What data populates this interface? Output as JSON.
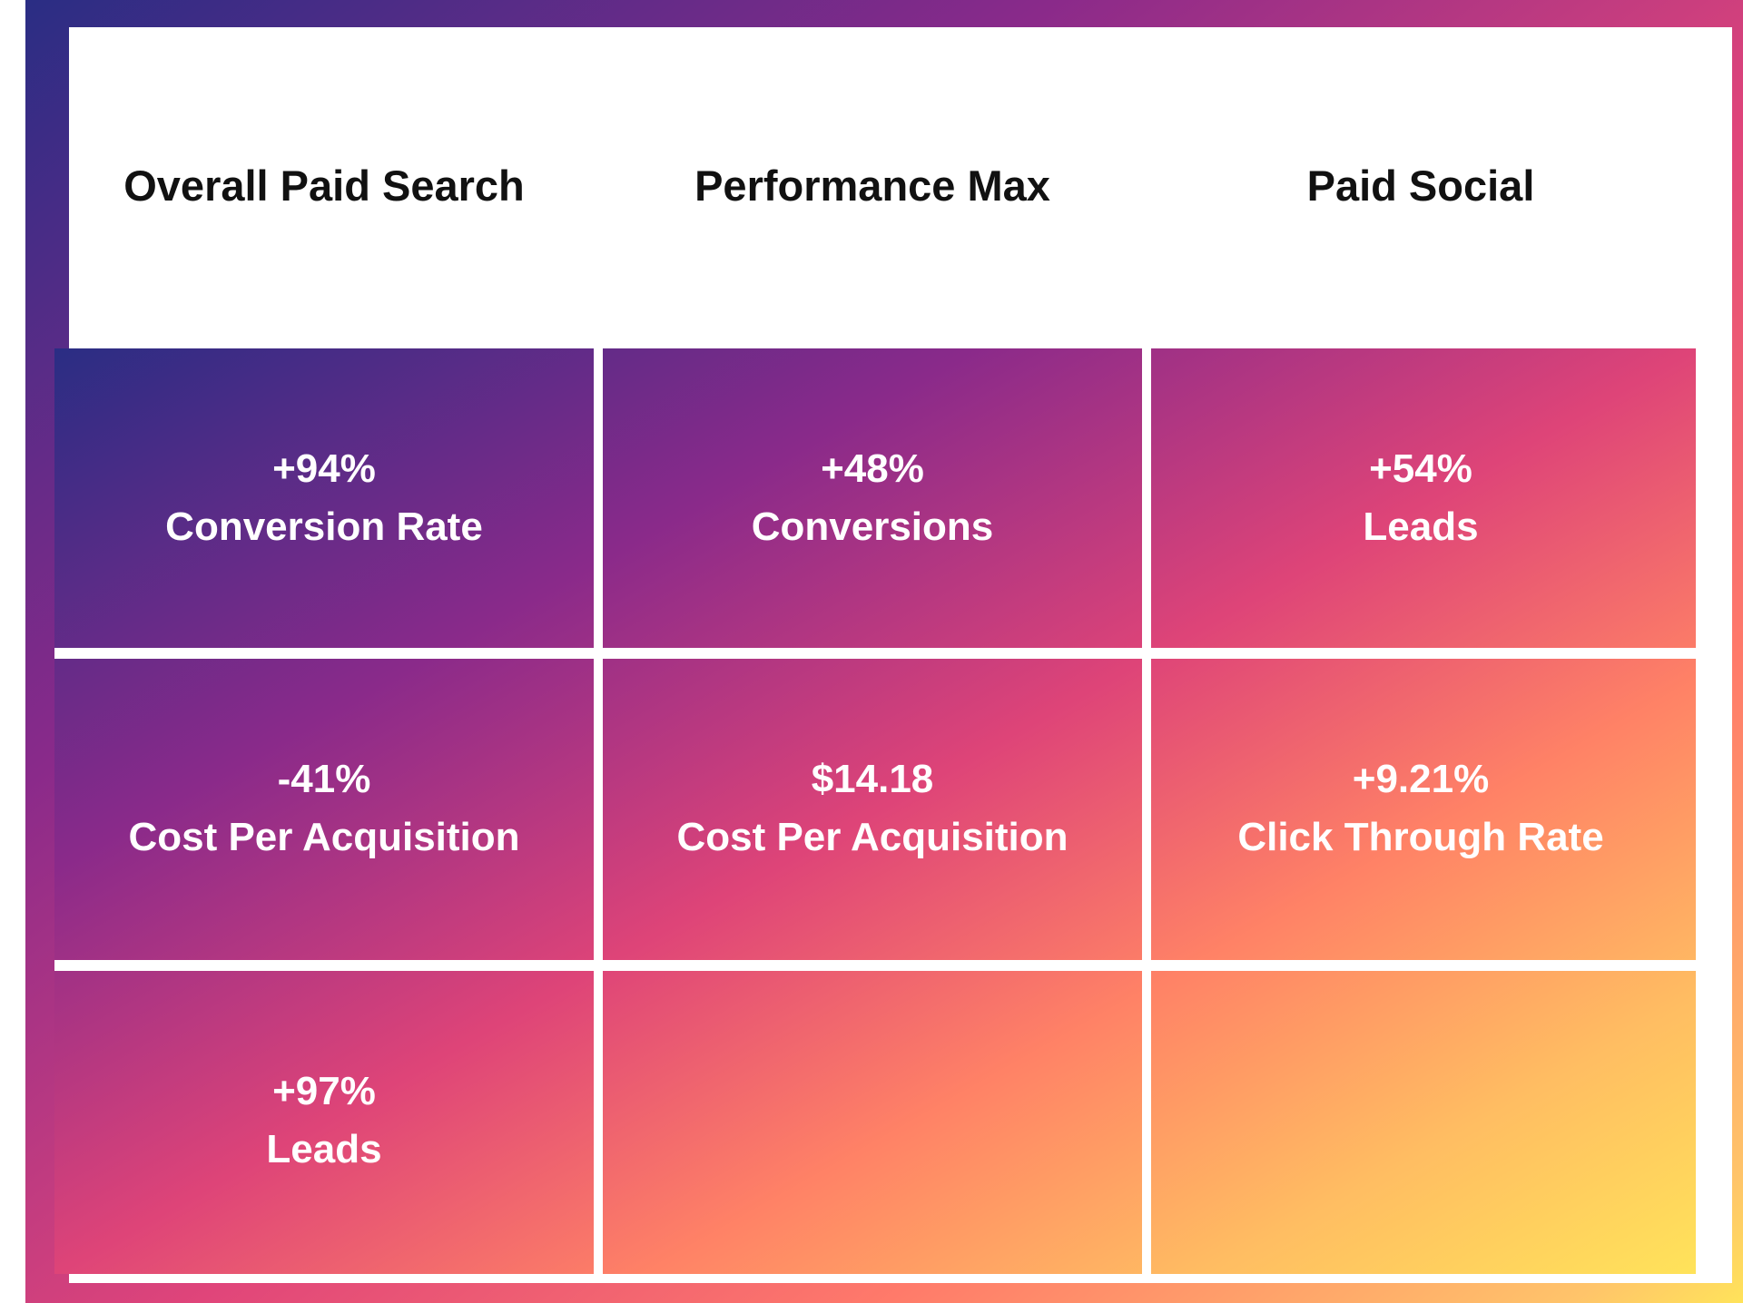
{
  "columns": [
    {
      "title": "Overall Paid Search"
    },
    {
      "title": "Performance Max"
    },
    {
      "title": "Paid Social"
    }
  ],
  "cells": [
    [
      {
        "value": "+94%",
        "label": "Conversion Rate"
      },
      {
        "value": "+48%",
        "label": "Conversions"
      },
      {
        "value": "+54%",
        "label": "Leads"
      }
    ],
    [
      {
        "value": "-41%",
        "label": "Cost Per Acquisition"
      },
      {
        "value": "$14.18",
        "label": "Cost Per Acquisition"
      },
      {
        "value": "+9.21%",
        "label": "Click Through Rate"
      }
    ],
    [
      {
        "value": "+97%",
        "label": "Leads"
      },
      {
        "value": "",
        "label": ""
      },
      {
        "value": "",
        "label": ""
      }
    ]
  ],
  "colors": {
    "gradient_start": "#2a2d84",
    "gradient_mid": "#e0457a",
    "gradient_end": "#ffe35a",
    "panel_bg": "#ffffff",
    "header_text": "#111111",
    "cell_text": "#ffffff"
  }
}
